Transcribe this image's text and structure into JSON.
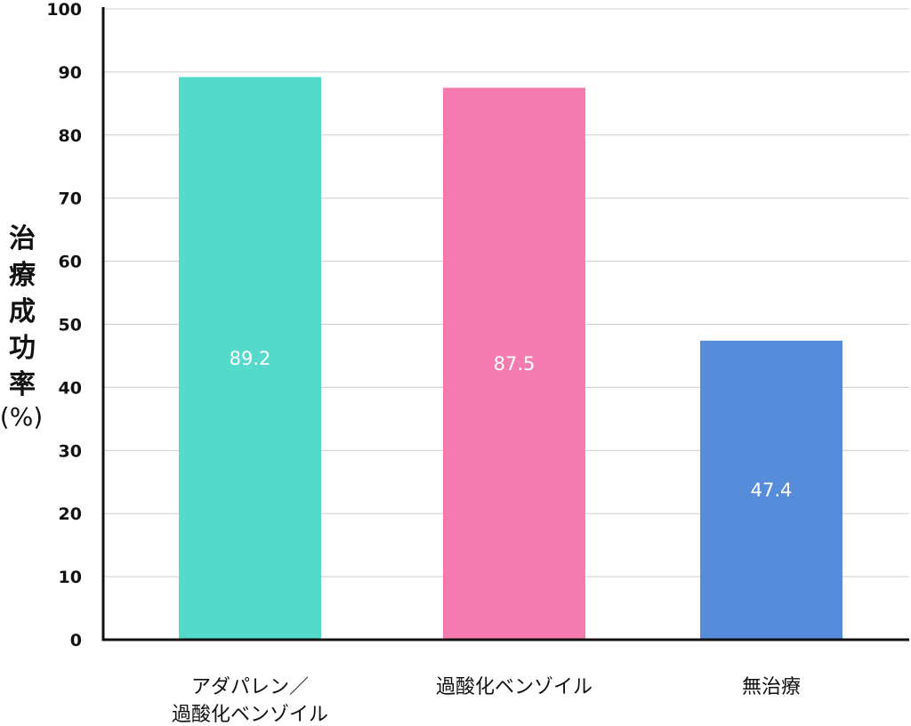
{
  "chart_data": {
    "type": "bar",
    "title": "",
    "xlabel": "",
    "ylabel": "治療成功率",
    "ylabel_unit": "(%)",
    "categories": [
      [
        "アダパレン／",
        "過酸化ベンゾイル"
      ],
      [
        "過酸化ベンゾイル"
      ],
      [
        "無治療"
      ]
    ],
    "values": [
      89.2,
      87.5,
      47.4
    ],
    "value_labels": [
      "89.2",
      "87.5",
      "47.4"
    ],
    "colors": [
      "#55d9ca",
      "#f57ab0",
      "#568cd9"
    ],
    "ylim": [
      0,
      100
    ],
    "yticks": [
      0,
      10,
      20,
      30,
      40,
      50,
      60,
      70,
      80,
      90,
      100
    ],
    "ytick_labels": [
      "0",
      "10",
      "20",
      "30",
      "40",
      "50",
      "60",
      "70",
      "80",
      "90",
      "100"
    ],
    "grid": true,
    "legend": "none"
  }
}
